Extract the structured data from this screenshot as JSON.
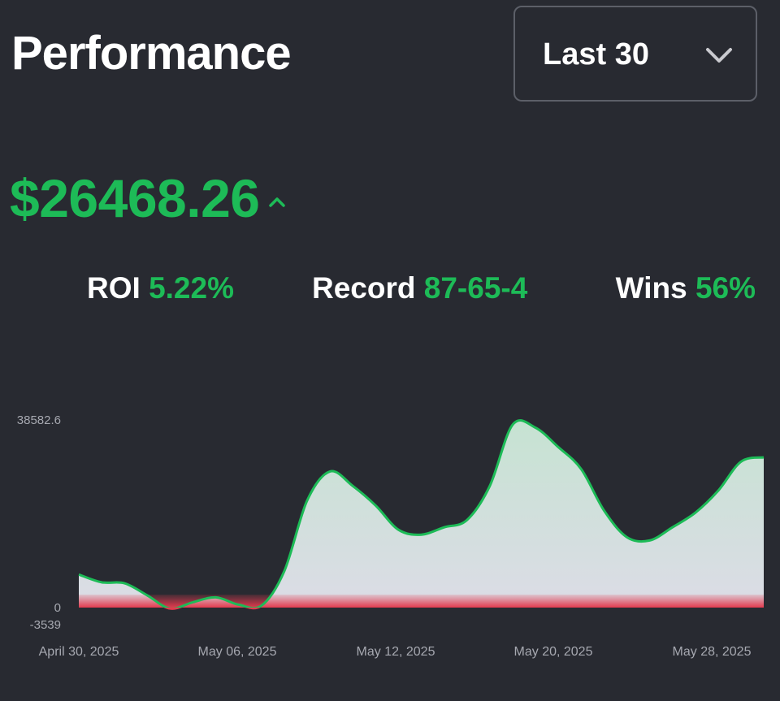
{
  "header": {
    "title": "Performance",
    "range_select": {
      "value": "Last 30",
      "icon": "chevron-down-icon"
    }
  },
  "balance": {
    "value": "$26468.26",
    "trend_icon": "caret-up-icon",
    "color": "#1dbb57"
  },
  "stats": {
    "roi": {
      "label": "ROI",
      "value": "5.22%"
    },
    "record": {
      "label": "Record",
      "value": "87-65-4"
    },
    "wins": {
      "label": "Wins",
      "value": "56%"
    }
  },
  "colors": {
    "background": "#282a31",
    "positive": "#1dbb57",
    "negative": "#e23a4e",
    "area_fill_top": "#c6e3d2",
    "area_fill_bottom": "#dcdce6"
  },
  "chart_data": {
    "type": "area",
    "x_tick_labels": [
      "April 30, 2025",
      "May 06, 2025",
      "May 12, 2025",
      "May 20, 2025",
      "May 28, 2025"
    ],
    "y_tick_labels": [
      "38582.6",
      "0",
      "-3539"
    ],
    "ylim": [
      -3539,
      38582.6
    ],
    "grid": false,
    "legend": "none",
    "series": [
      {
        "values": [
          6800,
          5200,
          5000,
          2500,
          -200,
          1100,
          2100,
          600,
          400,
          7500,
          22000,
          28000,
          25000,
          21000,
          16000,
          15000,
          16500,
          18000,
          25000,
          37600,
          37000,
          33000,
          28500,
          20000,
          14500,
          13800,
          16500,
          19500,
          24000,
          30000,
          30900
        ]
      }
    ]
  }
}
